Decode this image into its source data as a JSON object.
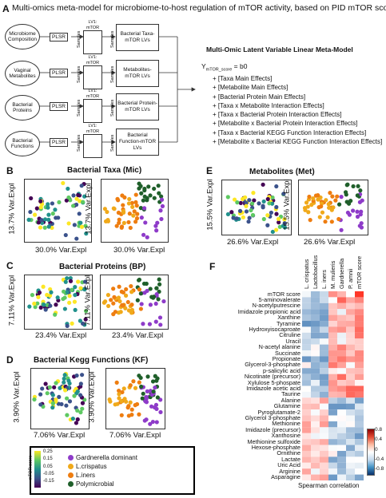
{
  "panelA": {
    "letter": "A",
    "title": "Multi-omics meta-model for microbiome-to-host regulation of mTOR activity, based on PID mTOR scores",
    "rows": [
      {
        "source": "Microbiome Composition",
        "method": "PLSR",
        "lv_label": "LV1: mTOR Score",
        "samples": "Samples",
        "output": "Bacterial Taxa-mTOR LVs"
      },
      {
        "source": "Vaginal Metabolites",
        "method": "PLSR",
        "lv_label": "LV1: mTOR Score",
        "samples": "Samples",
        "output": "Metabolites-mTOR LVs"
      },
      {
        "source": "Bacterial Proteins",
        "method": "PLSR",
        "lv_label": "LV1: mTOR Score",
        "samples": "Samples",
        "output": "Bacterial Protein-mTOR LVs"
      },
      {
        "source": "Bacterial Functions",
        "method": "PLSR",
        "lv_label": "LV1: mTOR Score",
        "samples": "Samples",
        "output": "Bacterial Function-mTOR LVs"
      }
    ],
    "model_title": "Multi-Omic Latent Variable Linear Meta-Model",
    "equation_lhs": "Y",
    "equation_sub": "mTOR_score",
    "equation_rhs": "=  b0",
    "terms": [
      "+ [Taxa Main Effects]",
      "+ [Metabolite Main Effects]",
      "+ [Bacterial Protein Main Effects]",
      "+ [Taxa x Metabolite Interaction Effects]",
      "+ [Taxa x Bacterial Protein Interaction Effects]",
      "+ [Metabolite x Bacterial Protein Interaction Effects]",
      "+ [Taxa x Bacterial KEGG Function Interaction Effects]",
      "+ [Metabolite x Bacterial KEGG Function Interaction Effects]"
    ]
  },
  "panelB": {
    "letter": "B",
    "title": "Bacterial Taxa (Mic)",
    "xlabel": "30.0% Var.Expl",
    "ylabel": "13.7% Var.Expl"
  },
  "panelC": {
    "letter": "C",
    "title": "Bacterial Proteins (BP)",
    "xlabel": "23.4% Var.Expl",
    "ylabel": "7.11% Var.Expl"
  },
  "panelD": {
    "letter": "D",
    "title": "Bacterial Kegg Functions (KF)",
    "xlabel": "7.06% Var.Expl",
    "ylabel": "3.90% Var.Expl"
  },
  "panelE": {
    "letter": "E",
    "title": "Metabolites (Met)",
    "xlabel": "26.6% Var.Expl",
    "ylabel": "15.5% Var.Expl"
  },
  "legend": {
    "colorbar_title": "mTOR score",
    "ticks": [
      "0.25",
      "0.15",
      "0.05",
      "-0.05",
      "-0.15"
    ],
    "groups": [
      {
        "label": "Gardnerella dominant",
        "color": "#8e3bc9"
      },
      {
        "label": "L.crispatus",
        "color": "#f0a91a"
      },
      {
        "label": "L.iners",
        "color": "#ee7d10"
      },
      {
        "label": "Polymicrobial",
        "color": "#1f5f2a"
      }
    ]
  },
  "panelF": {
    "letter": "F",
    "columns": [
      "L. crispatus",
      "Lactobacillus",
      "L. iners",
      "M. mulieris",
      "Gardnerella",
      "P. amnii",
      "mTOR score"
    ],
    "rows": [
      "mTOR score",
      "5-aminovalerate",
      "N-acetylputrescine",
      "Imidazole propionic acid",
      "Xanthine",
      "Tyramine",
      "Hydroxyisocaproate",
      "Citruline",
      "Uracil",
      "N-acetyl alanine",
      "Succinate",
      "Propionate",
      "Glycerol-3-phosphate",
      "p-salicylic acid",
      "Nicotinate (precursor)",
      "Xylulose 5-phospate",
      "Imidazole acetic acid",
      "Taurine",
      "Alanine",
      "Glutamine",
      "Pyroglutamate-2",
      "Glycerol 3-phosphate",
      "Methionine",
      "Imidazole (precursor)",
      "Xanthosine",
      "Methionine sulfoxide",
      "Hexose-phosphate",
      "Ornithine",
      "Lactate",
      "Uric Acid",
      "Arginine",
      "Asparagine"
    ],
    "colorbar_ticks": [
      "0.8",
      "0.4",
      "0",
      "-0.4",
      "-0.8"
    ],
    "colorbar_label": "Spearman correlation"
  }
}
